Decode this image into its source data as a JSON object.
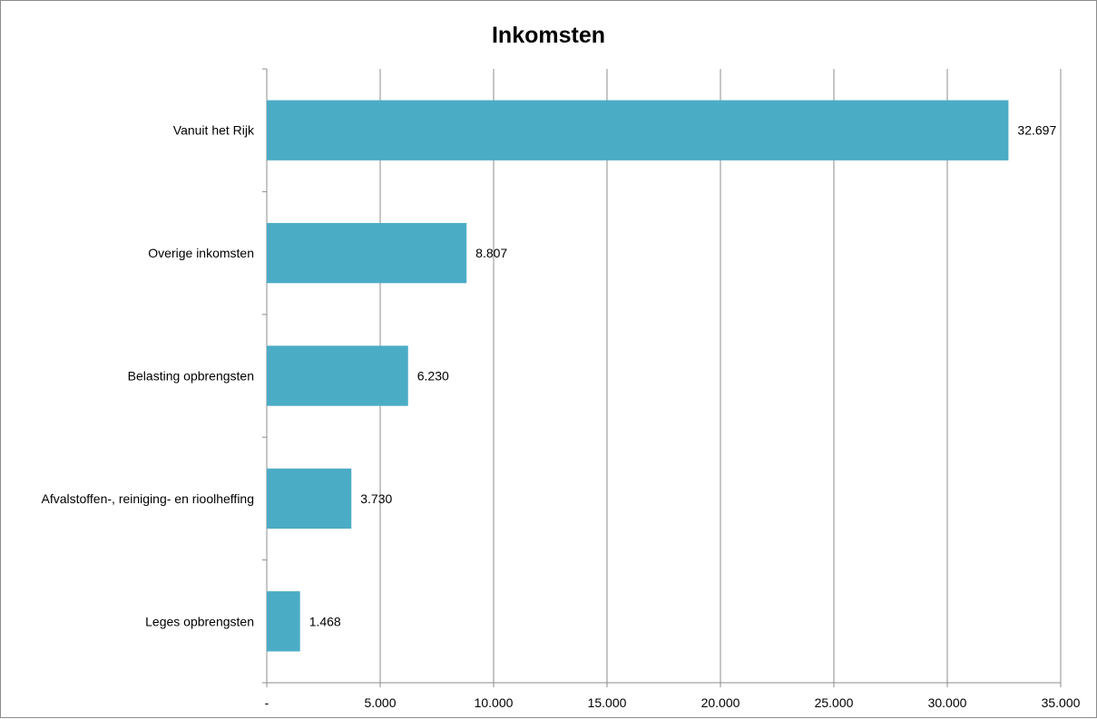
{
  "chart_data": {
    "type": "bar",
    "orientation": "horizontal",
    "title": "Inkomsten",
    "categories": [
      "Vanuit het Rijk",
      "Overige inkomsten",
      "Belasting opbrengsten",
      "Afvalstoffen-, reiniging- en rioolheffing",
      "Leges opbrengsten"
    ],
    "values": [
      32697,
      8807,
      6230,
      3730,
      1468
    ],
    "data_labels": [
      "32.697",
      "8.807",
      "6.230",
      "3.730",
      "1.468"
    ],
    "xlim": [
      0,
      35000
    ],
    "x_ticks": [
      0,
      5000,
      10000,
      15000,
      20000,
      25000,
      30000,
      35000
    ],
    "x_tick_labels": [
      "-",
      "5.000",
      "10.000",
      "15.000",
      "20.000",
      "25.000",
      "30.000",
      "35.000"
    ],
    "xlabel": "",
    "ylabel": "",
    "grid": "vertical",
    "legend": "none",
    "bar_color": "#4BACC6",
    "grid_color": "#8c8c8c"
  }
}
